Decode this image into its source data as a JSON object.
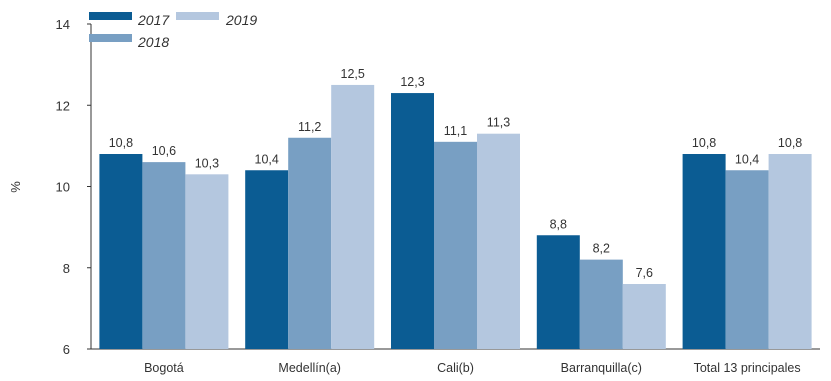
{
  "chart_data": {
    "type": "bar",
    "categories": [
      "Bogotá",
      "Medellín(a)",
      "Cali(b)",
      "Barranquilla(c)",
      "Total 13 principales"
    ],
    "series": [
      {
        "name": "2017",
        "color": "#0b5c93",
        "values": [
          10.8,
          10.4,
          12.3,
          8.8,
          10.8
        ]
      },
      {
        "name": "2018",
        "color": "#789fc3",
        "values": [
          10.6,
          11.2,
          11.1,
          8.2,
          10.4
        ]
      },
      {
        "name": "2019",
        "color": "#b4c7df",
        "values": [
          10.3,
          12.5,
          11.3,
          7.6,
          10.8
        ]
      }
    ],
    "value_labels": [
      [
        "10,8",
        "10,4",
        "12,3",
        "8,8",
        "10,8"
      ],
      [
        "10,6",
        "11,2",
        "11,1",
        "8,2",
        "10,4"
      ],
      [
        "10,3",
        "12,5",
        "11,3",
        "7,6",
        "10,8"
      ]
    ],
    "ylabel": "%",
    "ylim": [
      6,
      14
    ],
    "yticks": [
      6,
      8,
      10,
      12,
      14
    ],
    "grid": false,
    "legend_position": "top-left"
  }
}
